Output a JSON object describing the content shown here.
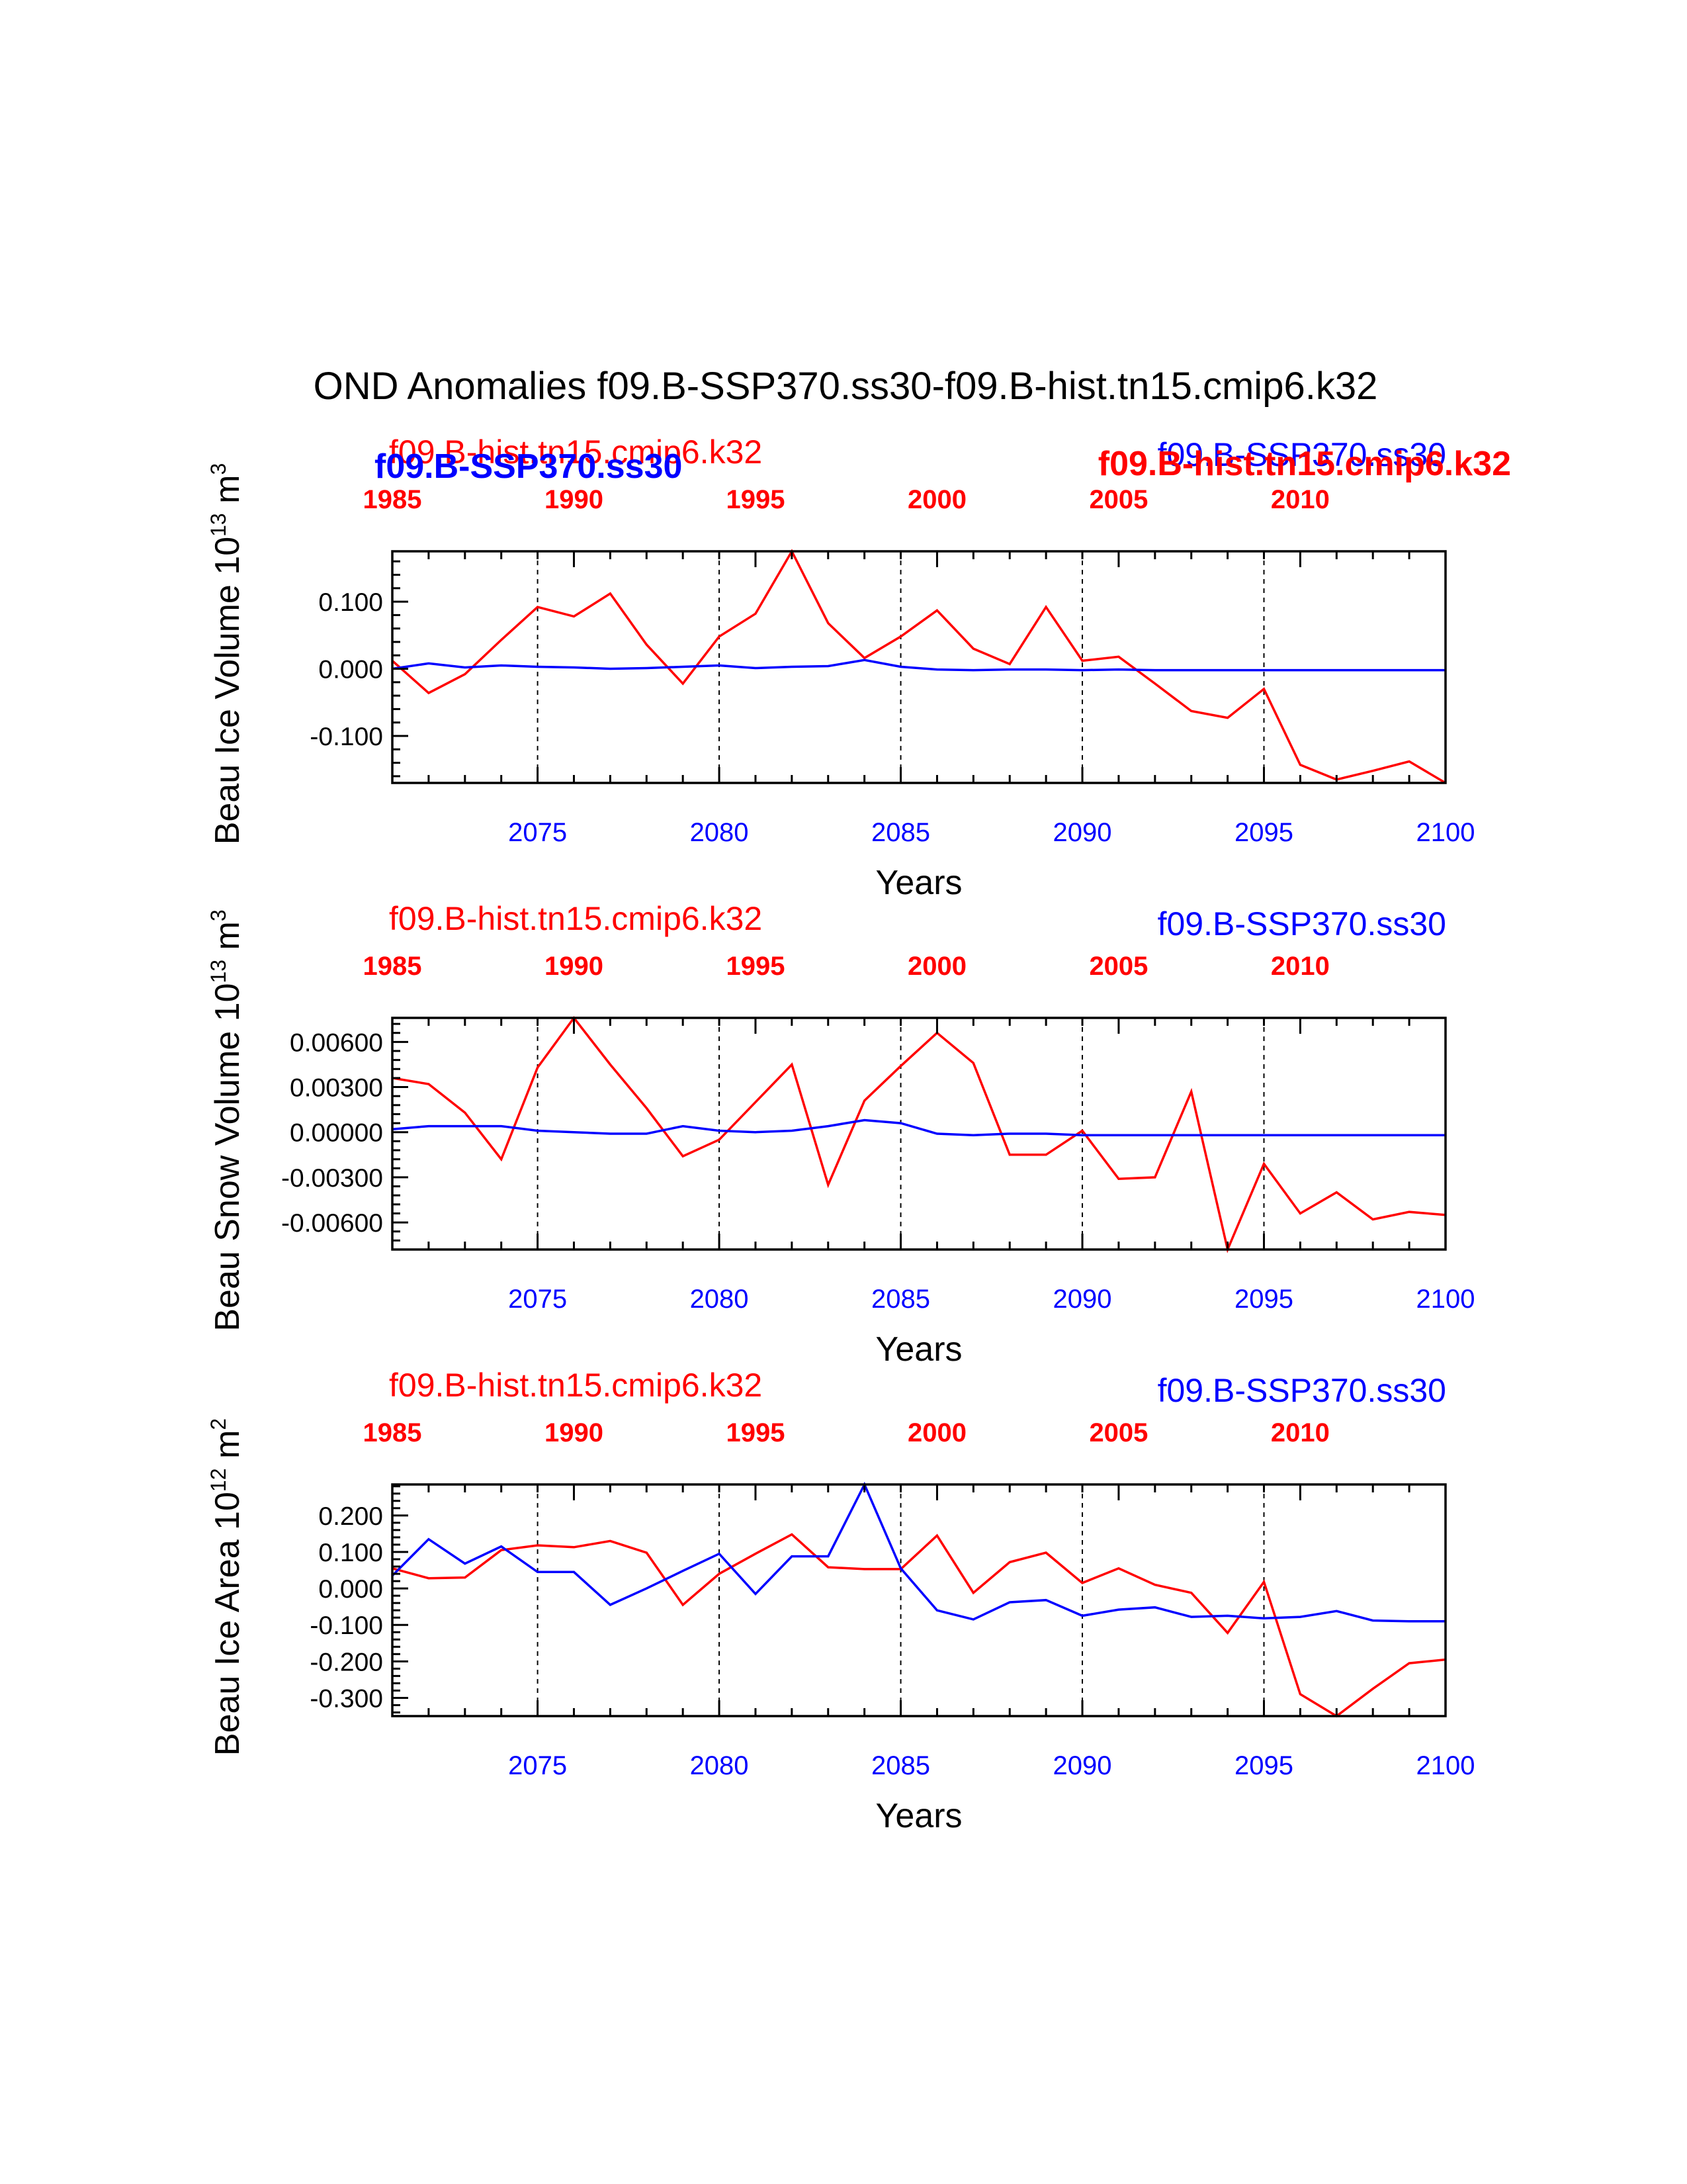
{
  "figure": {
    "title": "OND Anomalies f09.B-SSP370.ss30-f09.B-hist.tn15.cmip6.k32"
  },
  "colors": {
    "series_red": "#ff0000",
    "series_blue": "#0000ff",
    "axis": "#000000"
  },
  "chart_data": [
    {
      "type": "line",
      "ylabel": "Beau Ice Volume 10",
      "ylabel_exp": "13",
      "ylabel_unit": "m",
      "ylabel_unit_exp": "3",
      "xlabel": "Years",
      "x_bottom_ticks": [
        "2075",
        "2080",
        "2085",
        "2090",
        "2095",
        "2100"
      ],
      "x_top_ticks": [
        "1985",
        "1990",
        "1995",
        "2000",
        "2005",
        "2010"
      ],
      "y_ticks": [
        "0.100",
        "0.000",
        "-0.100"
      ],
      "y_tick_values": [
        0.1,
        0.0,
        -0.1
      ],
      "ylim": [
        -0.17,
        0.175
      ],
      "xlim": [
        2071,
        2100
      ],
      "top_axis_range": [
        1985,
        2014
      ],
      "dashed_vlines": [
        2075,
        2080,
        2085,
        2090,
        2095
      ],
      "legend": {
        "red_top_left": "f09.B-hist.tn15.cmip6.k32",
        "blue_top_left_bold": "f09.B-SSP370.ss30",
        "blue_top_right": "f09.B-SSP370.ss30",
        "red_top_right_bold": "f09.B-hist.tn15.cmip6.k32"
      },
      "x": [
        2071,
        2072,
        2073,
        2074,
        2075,
        2076,
        2077,
        2078,
        2079,
        2080,
        2081,
        2082,
        2083,
        2084,
        2085,
        2086,
        2087,
        2088,
        2089,
        2090,
        2091,
        2092,
        2093,
        2094,
        2095,
        2096,
        2097,
        2098,
        2099,
        2100
      ],
      "series": [
        {
          "name": "f09.B-hist.tn15.cmip6.k32",
          "color": "#ff0000",
          "values": [
            0.012,
            -0.036,
            -0.008,
            0.043,
            0.092,
            0.078,
            0.112,
            0.036,
            -0.022,
            0.048,
            0.082,
            0.175,
            0.068,
            0.016,
            0.048,
            0.087,
            0.03,
            0.007,
            0.092,
            0.012,
            0.018,
            -0.022,
            -0.063,
            -0.073,
            -0.03,
            -0.143,
            -0.165,
            -0.152,
            -0.138,
            -0.17
          ]
        },
        {
          "name": "f09.B-SSP370.ss30",
          "color": "#0000ff",
          "values": [
            0.0,
            0.008,
            0.002,
            0.005,
            0.003,
            0.002,
            0.0,
            0.001,
            0.003,
            0.005,
            0.001,
            0.003,
            0.004,
            0.013,
            0.003,
            -0.001,
            -0.002,
            -0.001,
            -0.001,
            -0.002,
            -0.001,
            -0.002,
            -0.002,
            -0.002,
            -0.002,
            -0.002,
            -0.002,
            -0.002,
            -0.002,
            -0.002
          ]
        }
      ]
    },
    {
      "type": "line",
      "ylabel": "Beau Snow Volume 10",
      "ylabel_exp": "13",
      "ylabel_unit": "m",
      "ylabel_unit_exp": "3",
      "xlabel": "Years",
      "x_bottom_ticks": [
        "2075",
        "2080",
        "2085",
        "2090",
        "2095",
        "2100"
      ],
      "x_top_ticks": [
        "1985",
        "1990",
        "1995",
        "2000",
        "2005",
        "2010"
      ],
      "y_ticks": [
        "0.00600",
        "0.00300",
        "0.00000",
        "-0.00300",
        "-0.00600"
      ],
      "y_tick_values": [
        0.006,
        0.003,
        0.0,
        -0.003,
        -0.006
      ],
      "ylim": [
        -0.0078,
        0.0076
      ],
      "xlim": [
        2071,
        2100
      ],
      "top_axis_range": [
        1985,
        2014
      ],
      "dashed_vlines": [
        2075,
        2080,
        2085,
        2090,
        2095
      ],
      "legend": {
        "red_top_left": "f09.B-hist.tn15.cmip6.k32",
        "blue_top_right": "f09.B-SSP370.ss30"
      },
      "x": [
        2071,
        2072,
        2073,
        2074,
        2075,
        2076,
        2077,
        2078,
        2079,
        2080,
        2081,
        2082,
        2083,
        2084,
        2085,
        2086,
        2087,
        2088,
        2089,
        2090,
        2091,
        2092,
        2093,
        2094,
        2095,
        2096,
        2097,
        2098,
        2099,
        2100
      ],
      "series": [
        {
          "name": "f09.B-hist.tn15.cmip6.k32",
          "color": "#ff0000",
          "values": [
            0.0036,
            0.0032,
            0.0013,
            -0.0018,
            0.0043,
            0.0076,
            0.0045,
            0.0016,
            -0.0016,
            -0.0005,
            0.002,
            0.0045,
            -0.0035,
            0.0021,
            0.0044,
            0.0066,
            0.0046,
            -0.0015,
            -0.0015,
            0.0001,
            -0.0031,
            -0.003,
            0.0027,
            -0.0078,
            -0.0021,
            -0.0054,
            -0.004,
            -0.0058,
            -0.0053,
            -0.0055
          ]
        },
        {
          "name": "f09.B-SSP370.ss30",
          "color": "#0000ff",
          "values": [
            0.0002,
            0.0004,
            0.0004,
            0.0004,
            0.0001,
            0.0,
            -0.0001,
            -0.0001,
            0.0004,
            0.0001,
            0.0,
            0.0001,
            0.0004,
            0.0008,
            0.0006,
            -0.0001,
            -0.0002,
            -0.0001,
            -0.0001,
            -0.0002,
            -0.0002,
            -0.0002,
            -0.0002,
            -0.0002,
            -0.0002,
            -0.0002,
            -0.0002,
            -0.0002,
            -0.0002,
            -0.0002
          ]
        }
      ]
    },
    {
      "type": "line",
      "ylabel": "Beau Ice Area 10",
      "ylabel_exp": "12",
      "ylabel_unit": "m",
      "ylabel_unit_exp": "2",
      "xlabel": "Years",
      "x_bottom_ticks": [
        "2075",
        "2080",
        "2085",
        "2090",
        "2095",
        "2100"
      ],
      "x_top_ticks": [
        "1985",
        "1990",
        "1995",
        "2000",
        "2005",
        "2010"
      ],
      "y_ticks": [
        "0.200",
        "0.100",
        "0.000",
        "-0.100",
        "-0.200",
        "-0.300"
      ],
      "y_tick_values": [
        0.2,
        0.1,
        0.0,
        -0.1,
        -0.2,
        -0.3
      ],
      "ylim": [
        -0.35,
        0.285
      ],
      "xlim": [
        2071,
        2100
      ],
      "top_axis_range": [
        1985,
        2014
      ],
      "dashed_vlines": [
        2075,
        2080,
        2085,
        2090,
        2095
      ],
      "legend": {
        "red_top_left": "f09.B-hist.tn15.cmip6.k32",
        "blue_top_right": "f09.B-SSP370.ss30"
      },
      "x": [
        2071,
        2072,
        2073,
        2074,
        2075,
        2076,
        2077,
        2078,
        2079,
        2080,
        2081,
        2082,
        2083,
        2084,
        2085,
        2086,
        2087,
        2088,
        2089,
        2090,
        2091,
        2092,
        2093,
        2094,
        2095,
        2096,
        2097,
        2098,
        2099,
        2100
      ],
      "series": [
        {
          "name": "f09.B-hist.tn15.cmip6.k32",
          "color": "#ff0000",
          "values": [
            0.055,
            0.028,
            0.03,
            0.105,
            0.118,
            0.113,
            0.13,
            0.098,
            -0.045,
            0.04,
            0.095,
            0.148,
            0.058,
            0.053,
            0.053,
            0.145,
            -0.012,
            0.072,
            0.098,
            0.015,
            0.055,
            0.01,
            -0.012,
            -0.122,
            0.018,
            -0.29,
            -0.35,
            -0.275,
            -0.205,
            -0.195
          ]
        },
        {
          "name": "f09.B-SSP370.ss30",
          "color": "#0000ff",
          "values": [
            0.035,
            0.135,
            0.068,
            0.115,
            0.045,
            0.045,
            -0.045,
            0.0,
            0.048,
            0.095,
            -0.015,
            0.088,
            0.088,
            0.285,
            0.055,
            -0.06,
            -0.085,
            -0.038,
            -0.032,
            -0.075,
            -0.058,
            -0.052,
            -0.078,
            -0.075,
            -0.082,
            -0.078,
            -0.062,
            -0.088,
            -0.09,
            -0.09
          ]
        }
      ]
    }
  ]
}
